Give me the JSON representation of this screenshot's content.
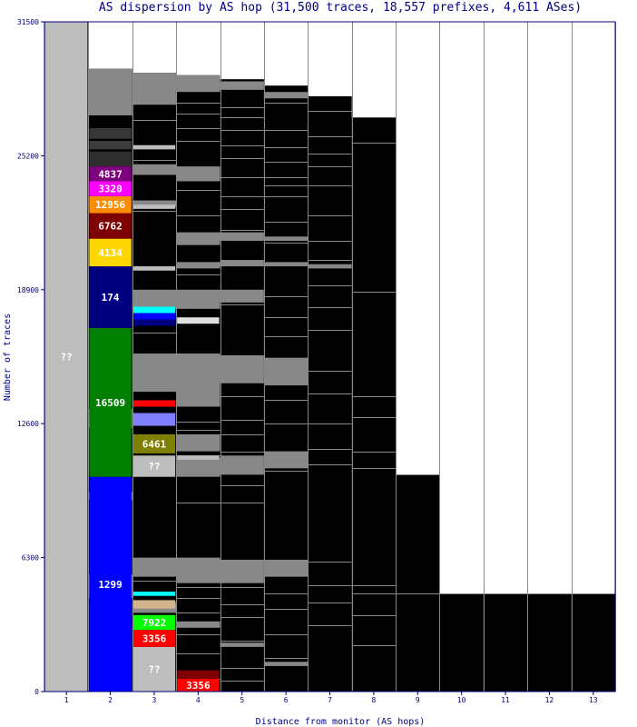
{
  "chart_data": {
    "type": "bar",
    "title": "AS dispersion by AS hop (31,500 traces, 18,557 prefixes, 4,611 ASes)",
    "xlabel": "Distance from monitor (AS hops)",
    "ylabel": "Number of traces",
    "ylim": [
      0,
      31500
    ],
    "y_ticks": [
      "0",
      "6300",
      "12600",
      "18900",
      "25200",
      "31500"
    ],
    "categories": [
      "1",
      "2",
      "3",
      "4",
      "5",
      "6",
      "7",
      "8",
      "9",
      "10",
      "11",
      "12",
      "13"
    ],
    "totals": [
      31500,
      29300,
      29100,
      29000,
      28800,
      28500,
      28000,
      27000,
      10200,
      4600,
      4600,
      4600,
      4600
    ],
    "background_color": "#000000",
    "stub_color": "#888888",
    "stub_thin_lines": [
      [],
      [],
      [
        26900,
        25000,
        23100,
        22900,
        22600,
        16900,
        6300,
        5200
      ],
      [
        27700,
        27200,
        26500,
        25900,
        24500,
        23600,
        22400,
        19600,
        15900,
        14200,
        12700,
        12300,
        11100,
        8900,
        5400,
        4900,
        4400,
        3700,
        2700,
        1800,
        600
      ],
      [
        27500,
        27000,
        26400,
        25700,
        25100,
        24200,
        23300,
        22700,
        21700,
        18200,
        15800,
        15200,
        13900,
        12800,
        12100,
        11300,
        9700,
        8900,
        6100,
        5400,
        4900,
        4100,
        3500,
        2400,
        1100,
        500
      ],
      [
        27700,
        26400,
        25600,
        24900,
        24200,
        23800,
        23300,
        22100,
        21100,
        20100,
        18600,
        17600,
        16700,
        15700,
        14800,
        13700,
        12600,
        11200,
        10400,
        6100,
        5500,
        4600,
        3900,
        2700,
        1600
      ],
      [
        27300,
        26100,
        25300,
        24700,
        23800,
        22400,
        21200,
        20300,
        19100,
        18100,
        17000,
        15100,
        14000,
        12600,
        11400,
        10700,
        6100,
        5000,
        4200,
        3100
      ],
      [
        25800,
        18800,
        13900,
        12900,
        11300,
        10500,
        5000,
        4600,
        3600,
        2200
      ],
      [
        10200,
        4600
      ],
      [
        4600
      ],
      [
        4600
      ],
      [
        4600
      ],
      [
        4600
      ]
    ],
    "stub_blocks": [
      [],
      [
        {
          "from": 29300,
          "to": 27100
        },
        {
          "from": 13300,
          "to": 12400
        },
        {
          "from": 9400,
          "to": 9000
        },
        {
          "from": 5500,
          "to": 4400
        }
      ],
      [
        {
          "from": 29100,
          "to": 27600
        },
        {
          "from": 24800,
          "to": 24300
        },
        {
          "from": 23100,
          "to": 22800
        },
        {
          "from": 18900,
          "to": 18000
        },
        {
          "from": 15900,
          "to": 14100
        },
        {
          "from": 6300,
          "to": 5400
        },
        {
          "from": 4200,
          "to": 3700
        }
      ],
      [
        {
          "from": 29000,
          "to": 28200
        },
        {
          "from": 24700,
          "to": 24000
        },
        {
          "from": 21600,
          "to": 21000
        },
        {
          "from": 20200,
          "to": 19900
        },
        {
          "from": 18900,
          "to": 18000
        },
        {
          "from": 15900,
          "to": 13400
        },
        {
          "from": 12100,
          "to": 11300
        },
        {
          "from": 11000,
          "to": 10100
        },
        {
          "from": 6300,
          "to": 5100
        },
        {
          "from": 3300,
          "to": 3000
        }
      ],
      [
        {
          "from": 28700,
          "to": 28300
        },
        {
          "from": 21600,
          "to": 21200
        },
        {
          "from": 20300,
          "to": 20000
        },
        {
          "from": 18900,
          "to": 18300
        },
        {
          "from": 15800,
          "to": 14500
        },
        {
          "from": 11100,
          "to": 10200
        },
        {
          "from": 6200,
          "to": 5100
        },
        {
          "from": 2300,
          "to": 2100
        }
      ],
      [
        {
          "from": 28200,
          "to": 27900
        },
        {
          "from": 21400,
          "to": 21200
        },
        {
          "from": 20200,
          "to": 20000
        },
        {
          "from": 15700,
          "to": 14400
        },
        {
          "from": 11300,
          "to": 10500
        },
        {
          "from": 6200,
          "to": 5400
        },
        {
          "from": 1400,
          "to": 1200
        }
      ],
      [
        {
          "from": 20100,
          "to": 19900
        }
      ],
      [],
      [],
      [],
      [],
      [],
      []
    ],
    "segments": [
      [
        {
          "label": "??",
          "from": 0,
          "to": 31500,
          "color": "#bdbdbd"
        }
      ],
      [
        {
          "label": "1299",
          "from": 0,
          "to": 10100,
          "color": "#0000ff"
        },
        {
          "label": "16509",
          "from": 10100,
          "to": 17100,
          "color": "#007f00"
        },
        {
          "label": "174",
          "from": 17100,
          "to": 20000,
          "color": "#00007f"
        },
        {
          "label": "4134",
          "from": 20000,
          "to": 21300,
          "color": "#ffd700"
        },
        {
          "label": "6762",
          "from": 21300,
          "to": 22500,
          "color": "#7f0000"
        },
        {
          "label": "12956",
          "from": 22500,
          "to": 23300,
          "color": "#ff8c00"
        },
        {
          "label": "3320",
          "from": 23300,
          "to": 24000,
          "color": "#ff00ff"
        },
        {
          "label": "4837",
          "from": 24000,
          "to": 24700,
          "color": "#7f007f"
        },
        {
          "label": "",
          "from": 24700,
          "to": 25400,
          "color": "#2e2e2e"
        },
        {
          "label": "",
          "from": 25500,
          "to": 25900,
          "color": "#3c3c3c"
        },
        {
          "label": "",
          "from": 26000,
          "to": 26500,
          "color": "#363636"
        }
      ],
      [
        {
          "label": "??",
          "from": 0,
          "to": 2100,
          "color": "#bdbdbd"
        },
        {
          "label": "3356",
          "from": 2100,
          "to": 2900,
          "color": "#ff0000"
        },
        {
          "label": "7922",
          "from": 2900,
          "to": 3600,
          "color": "#00ff00"
        },
        {
          "label": "",
          "from": 3900,
          "to": 4300,
          "color": "#d2b48c"
        },
        {
          "label": "",
          "from": 4500,
          "to": 4700,
          "color": "#00ffff"
        },
        {
          "label": "??",
          "from": 10100,
          "to": 11100,
          "color": "#bdbdbd"
        },
        {
          "label": "6461",
          "from": 11200,
          "to": 12100,
          "color": "#7f7f00"
        },
        {
          "label": "",
          "from": 12500,
          "to": 13100,
          "color": "#8080ff"
        },
        {
          "label": "",
          "from": 13400,
          "to": 13700,
          "color": "#ff0000"
        },
        {
          "label": "",
          "from": 17200,
          "to": 17500,
          "color": "#000080"
        },
        {
          "label": "",
          "from": 17500,
          "to": 17800,
          "color": "#0000ff"
        },
        {
          "label": "",
          "from": 17800,
          "to": 18100,
          "color": "#00ffff"
        },
        {
          "label": "",
          "from": 19800,
          "to": 20000,
          "color": "#bdbdbd"
        },
        {
          "label": "",
          "from": 22700,
          "to": 22900,
          "color": "#bdbdbd"
        },
        {
          "label": "",
          "from": 25500,
          "to": 25700,
          "color": "#bdbdbd"
        }
      ],
      [
        {
          "label": "3356",
          "from": 0,
          "to": 600,
          "color": "#ff0000"
        },
        {
          "label": "",
          "from": 600,
          "to": 1000,
          "color": "#7f0000"
        },
        {
          "label": "",
          "from": 10900,
          "to": 11100,
          "color": "#bdbdbd"
        },
        {
          "label": "",
          "from": 17300,
          "to": 17600,
          "color": "#e0e0e0"
        }
      ],
      [],
      [],
      [],
      [],
      [],
      [],
      [],
      [],
      []
    ]
  }
}
